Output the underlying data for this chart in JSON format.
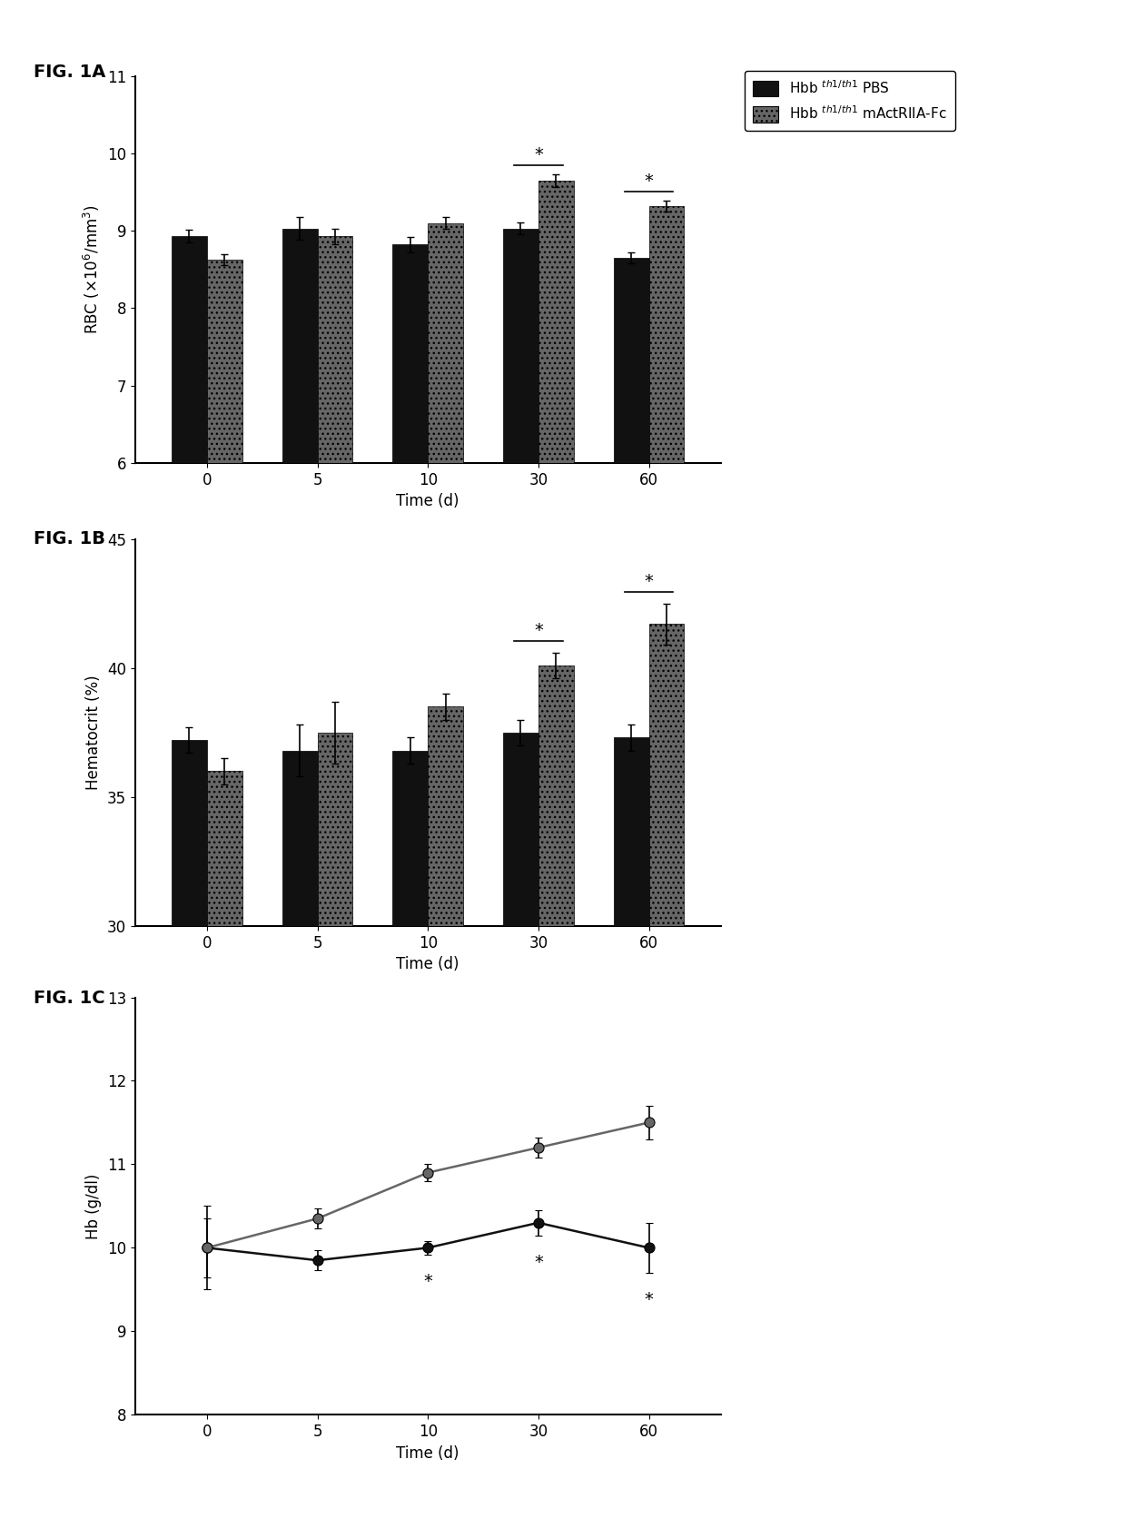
{
  "time_points": [
    0,
    5,
    10,
    30,
    60
  ],
  "time_labels": [
    "0",
    "5",
    "10",
    "30",
    "60"
  ],
  "rbc_pbs_mean": [
    8.93,
    9.03,
    8.82,
    9.03,
    8.65
  ],
  "rbc_pbs_err": [
    0.08,
    0.15,
    0.1,
    0.08,
    0.07
  ],
  "rbc_act_mean": [
    8.63,
    8.93,
    9.1,
    9.65,
    9.32
  ],
  "rbc_act_err": [
    0.07,
    0.1,
    0.08,
    0.08,
    0.07
  ],
  "rbc_ylim": [
    6,
    11
  ],
  "rbc_yticks": [
    6,
    7,
    8,
    9,
    10,
    11
  ],
  "rbc_ylabel": "RBC (×10$^6$/mm$^3$)",
  "hct_pbs_mean": [
    37.2,
    36.8,
    36.8,
    37.5,
    37.3
  ],
  "hct_pbs_err": [
    0.5,
    1.0,
    0.5,
    0.5,
    0.5
  ],
  "hct_act_mean": [
    36.0,
    37.5,
    38.5,
    40.1,
    41.7
  ],
  "hct_act_err": [
    0.5,
    1.2,
    0.5,
    0.5,
    0.8
  ],
  "hct_ylim": [
    30,
    45
  ],
  "hct_yticks": [
    30,
    35,
    40,
    45
  ],
  "hct_ylabel": "Hematocrit (%)",
  "hb_pbs_mean": [
    10.0,
    9.85,
    10.0,
    10.3,
    10.0
  ],
  "hb_pbs_err": [
    0.35,
    0.12,
    0.08,
    0.15,
    0.3
  ],
  "hb_act_mean": [
    10.0,
    10.35,
    10.9,
    11.2,
    11.5
  ],
  "hb_act_err": [
    0.5,
    0.12,
    0.1,
    0.12,
    0.2
  ],
  "hb_ylim": [
    8,
    13
  ],
  "hb_yticks": [
    8,
    9,
    10,
    11,
    12,
    13
  ],
  "hb_ylabel": "Hb (g/dl)",
  "pbs_color": "#111111",
  "act_color": "#666666",
  "bar_width": 0.32,
  "xlabel": "Time (d)",
  "fig1a_label": "FIG. 1A",
  "fig1b_label": "FIG. 1B",
  "fig1c_label": "FIG. 1C",
  "legend_pbs": "Hbb $^{th1/th1}$ PBS",
  "legend_act": "Hbb $^{th1/th1}$ mActRIIA-Fc"
}
